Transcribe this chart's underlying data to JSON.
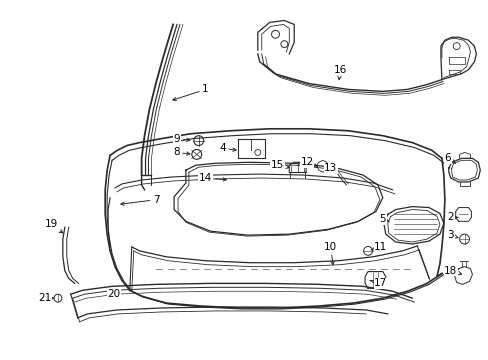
{
  "bg_color": "#ffffff",
  "fig_width": 4.89,
  "fig_height": 3.6,
  "dpi": 100,
  "line_color": "#2a2a2a",
  "font_size": 7.5,
  "font_color": "#000000",
  "arrow_color": "#2a2a2a"
}
